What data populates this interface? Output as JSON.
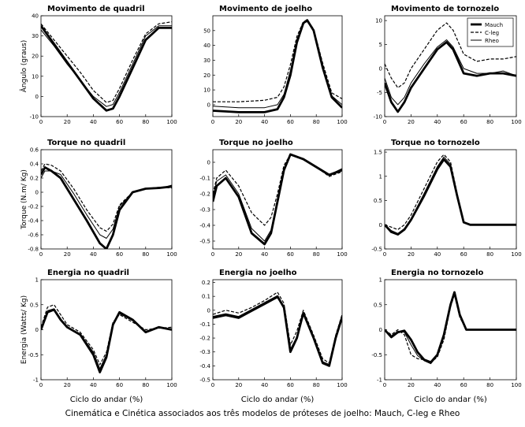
{
  "figure": {
    "caption": "Cinemática e Cinética associados aos três modelos de próteses de joelho: Mauch, C-leg e Rheo",
    "xlabel": "Ciclo do andar (%)",
    "row_ylabels": [
      "Ângulo (graus)",
      "Torque (N.m/ Kg)",
      "Energia (Watts/ Kg)"
    ]
  },
  "chart_data": [
    {
      "type": "line",
      "title": "Movimento de quadril",
      "xticks": [
        "0",
        "20",
        "40",
        "60",
        "80",
        "100"
      ],
      "xlim": [
        0,
        100
      ],
      "yticks": [
        "-10",
        "0",
        "10",
        "20",
        "30",
        "40"
      ],
      "ylim": [
        -10,
        40
      ],
      "series": [
        {
          "name": "Mauch",
          "x": [
            0,
            10,
            20,
            30,
            40,
            50,
            55,
            60,
            70,
            80,
            90,
            100
          ],
          "y": [
            35,
            26,
            17,
            8,
            -1,
            -7,
            -6,
            0,
            14,
            28,
            34,
            34
          ]
        },
        {
          "name": "C-leg",
          "x": [
            0,
            10,
            20,
            30,
            40,
            50,
            55,
            60,
            70,
            80,
            90,
            100
          ],
          "y": [
            36,
            28,
            20,
            12,
            3,
            -3,
            -2,
            4,
            18,
            31,
            36,
            37
          ]
        },
        {
          "name": "Rheo",
          "x": [
            0,
            10,
            20,
            30,
            40,
            50,
            55,
            60,
            70,
            80,
            90,
            100
          ],
          "y": [
            33,
            25,
            16,
            8,
            0,
            -5,
            -4,
            2,
            16,
            30,
            35,
            35
          ]
        }
      ]
    },
    {
      "type": "line",
      "title": "Movimento de joelho",
      "xticks": [
        "0",
        "20",
        "40",
        "60",
        "80",
        "100"
      ],
      "xlim": [
        0,
        100
      ],
      "yticks": [
        "0",
        "10",
        "20",
        "30",
        "40",
        "50"
      ],
      "ylim": [
        -8,
        60
      ],
      "series": [
        {
          "name": "Mauch",
          "x": [
            0,
            20,
            40,
            50,
            55,
            60,
            65,
            70,
            73,
            78,
            85,
            92,
            100
          ],
          "y": [
            -4,
            -5,
            -5,
            -3,
            5,
            20,
            42,
            55,
            57,
            50,
            25,
            5,
            -2
          ]
        },
        {
          "name": "C-leg",
          "x": [
            0,
            20,
            40,
            50,
            55,
            60,
            65,
            70,
            73,
            78,
            85,
            92,
            100
          ],
          "y": [
            2,
            2,
            3,
            5,
            12,
            27,
            46,
            56,
            57,
            51,
            28,
            8,
            4
          ]
        },
        {
          "name": "Rheo",
          "x": [
            0,
            20,
            40,
            50,
            55,
            60,
            65,
            70,
            73,
            78,
            85,
            92,
            100
          ],
          "y": [
            -1,
            -2,
            -2,
            0,
            7,
            23,
            44,
            55,
            56,
            50,
            26,
            6,
            0
          ]
        }
      ]
    },
    {
      "type": "line",
      "title": "Movimento de tornozelo",
      "xticks": [
        "0",
        "20",
        "40",
        "60",
        "80",
        "100"
      ],
      "xlim": [
        0,
        100
      ],
      "yticks": [
        "-10",
        "-5",
        "0",
        "5",
        "10"
      ],
      "ylim": [
        -10,
        11
      ],
      "legend": [
        "Mauch",
        "C-leg",
        "Rheo"
      ],
      "series": [
        {
          "name": "Mauch",
          "x": [
            0,
            5,
            10,
            15,
            20,
            30,
            40,
            47,
            52,
            60,
            70,
            80,
            90,
            100
          ],
          "y": [
            -3,
            -7,
            -9,
            -7,
            -4,
            0,
            4,
            5.5,
            4,
            -1,
            -1.5,
            -1,
            -1,
            -1.5
          ]
        },
        {
          "name": "C-leg",
          "x": [
            0,
            5,
            10,
            15,
            20,
            30,
            40,
            47,
            52,
            60,
            70,
            80,
            90,
            100
          ],
          "y": [
            1,
            -2,
            -4,
            -3,
            0,
            4,
            8,
            9.5,
            8,
            3,
            1.5,
            2,
            2,
            2.5
          ]
        },
        {
          "name": "Rheo",
          "x": [
            0,
            5,
            10,
            15,
            20,
            30,
            40,
            47,
            52,
            60,
            70,
            80,
            90,
            100
          ],
          "y": [
            -2,
            -6,
            -7.5,
            -6,
            -3,
            1,
            4.5,
            6,
            4.5,
            0,
            -1,
            -1,
            -0.5,
            -1.5
          ]
        }
      ]
    },
    {
      "type": "line",
      "title": "Torque no quadril",
      "xticks": [
        "0",
        "20",
        "40",
        "60",
        "80",
        "100"
      ],
      "xlim": [
        0,
        100
      ],
      "yticks": [
        "-0.8",
        "-0.6",
        "-0.4",
        "-0.2",
        "0",
        "0.2",
        "0.4",
        "0.6"
      ],
      "ylim": [
        -0.8,
        0.6
      ],
      "series": [
        {
          "name": "Mauch",
          "x": [
            0,
            3,
            8,
            15,
            25,
            35,
            45,
            50,
            55,
            60,
            70,
            80,
            90,
            100
          ],
          "y": [
            0.25,
            0.35,
            0.3,
            0.2,
            -0.1,
            -0.4,
            -0.72,
            -0.8,
            -0.6,
            -0.25,
            0,
            0.05,
            0.06,
            0.08
          ]
        },
        {
          "name": "C-leg",
          "x": [
            0,
            3,
            8,
            15,
            25,
            35,
            45,
            50,
            55,
            60,
            70,
            80,
            90,
            100
          ],
          "y": [
            0.3,
            0.4,
            0.38,
            0.3,
            0.05,
            -0.25,
            -0.5,
            -0.55,
            -0.45,
            -0.18,
            0,
            0.05,
            0.07,
            0.06
          ]
        },
        {
          "name": "Rheo",
          "x": [
            0,
            3,
            8,
            15,
            25,
            35,
            45,
            50,
            55,
            60,
            70,
            80,
            90,
            100
          ],
          "y": [
            0.2,
            0.3,
            0.3,
            0.25,
            -0.02,
            -0.32,
            -0.6,
            -0.65,
            -0.52,
            -0.2,
            0,
            0.05,
            0.05,
            0.1
          ]
        }
      ]
    },
    {
      "type": "line",
      "title": "Torque no joelho",
      "xticks": [
        "0",
        "20",
        "40",
        "60",
        "80",
        "100"
      ],
      "xlim": [
        0,
        100
      ],
      "yticks": [
        "-0.5",
        "-0.4",
        "-0.3",
        "-0.2",
        "-0.1",
        "0"
      ],
      "ylim": [
        -0.55,
        0.08
      ],
      "series": [
        {
          "name": "Mauch",
          "x": [
            0,
            3,
            10,
            20,
            30,
            40,
            45,
            50,
            55,
            60,
            70,
            80,
            90,
            100
          ],
          "y": [
            -0.25,
            -0.15,
            -0.1,
            -0.22,
            -0.45,
            -0.52,
            -0.45,
            -0.25,
            -0.05,
            0.05,
            0.02,
            -0.03,
            -0.08,
            -0.05
          ]
        },
        {
          "name": "C-leg",
          "x": [
            0,
            3,
            10,
            20,
            30,
            40,
            45,
            50,
            55,
            60,
            70,
            80,
            90,
            100
          ],
          "y": [
            -0.2,
            -0.1,
            -0.05,
            -0.15,
            -0.32,
            -0.4,
            -0.35,
            -0.2,
            -0.02,
            0.05,
            0.02,
            -0.03,
            -0.09,
            -0.06
          ]
        },
        {
          "name": "Rheo",
          "x": [
            0,
            3,
            10,
            20,
            30,
            40,
            45,
            50,
            55,
            60,
            70,
            80,
            90,
            100
          ],
          "y": [
            -0.22,
            -0.12,
            -0.08,
            -0.2,
            -0.42,
            -0.5,
            -0.43,
            -0.23,
            -0.04,
            0.05,
            0.02,
            -0.03,
            -0.08,
            -0.04
          ]
        }
      ]
    },
    {
      "type": "line",
      "title": "Torque no tornozelo",
      "xticks": [
        "0",
        "20",
        "40",
        "60",
        "80",
        "100"
      ],
      "xlim": [
        0,
        100
      ],
      "yticks": [
        "-0.5",
        "0",
        "0.5",
        "1",
        "1.5"
      ],
      "ylim": [
        -0.5,
        1.55
      ],
      "series": [
        {
          "name": "Mauch",
          "x": [
            0,
            5,
            10,
            15,
            20,
            30,
            40,
            45,
            50,
            55,
            60,
            65,
            100
          ],
          "y": [
            0,
            -0.15,
            -0.2,
            -0.1,
            0.1,
            0.6,
            1.15,
            1.35,
            1.2,
            0.6,
            0.05,
            0,
            0
          ]
        },
        {
          "name": "C-leg",
          "x": [
            0,
            5,
            10,
            15,
            20,
            30,
            40,
            45,
            50,
            55,
            60,
            65,
            100
          ],
          "y": [
            0,
            -0.05,
            -0.1,
            0,
            0.2,
            0.75,
            1.3,
            1.45,
            1.3,
            0.65,
            0.05,
            0,
            0
          ]
        },
        {
          "name": "Rheo",
          "x": [
            0,
            5,
            10,
            15,
            20,
            30,
            40,
            45,
            50,
            55,
            60,
            65,
            100
          ],
          "y": [
            0,
            -0.12,
            -0.18,
            -0.08,
            0.12,
            0.65,
            1.2,
            1.4,
            1.25,
            0.62,
            0.05,
            0,
            0
          ]
        }
      ]
    },
    {
      "type": "line",
      "title": "Energia no quadril",
      "xticks": [
        "0",
        "20",
        "40",
        "60",
        "80",
        "100"
      ],
      "xlim": [
        0,
        100
      ],
      "yticks": [
        "-1",
        "-0.5",
        "0",
        "0.5",
        "1"
      ],
      "ylim": [
        -1,
        1
      ],
      "series": [
        {
          "name": "Mauch",
          "x": [
            0,
            5,
            10,
            15,
            20,
            30,
            40,
            45,
            50,
            55,
            60,
            70,
            80,
            90,
            100
          ],
          "y": [
            0,
            0.35,
            0.4,
            0.2,
            0.05,
            -0.1,
            -0.5,
            -0.85,
            -0.55,
            0.1,
            0.35,
            0.2,
            -0.05,
            0.05,
            0
          ]
        },
        {
          "name": "C-leg",
          "x": [
            0,
            5,
            10,
            15,
            20,
            30,
            40,
            45,
            50,
            55,
            60,
            70,
            80,
            90,
            100
          ],
          "y": [
            0.05,
            0.45,
            0.5,
            0.3,
            0.1,
            -0.05,
            -0.4,
            -0.7,
            -0.45,
            0.15,
            0.3,
            0.15,
            0,
            0.03,
            0.05
          ]
        },
        {
          "name": "Rheo",
          "x": [
            0,
            5,
            10,
            15,
            20,
            30,
            40,
            45,
            50,
            55,
            60,
            70,
            80,
            90,
            100
          ],
          "y": [
            0,
            0.38,
            0.42,
            0.22,
            0.05,
            -0.08,
            -0.45,
            -0.78,
            -0.5,
            0.12,
            0.32,
            0.18,
            -0.03,
            0.04,
            0.02
          ]
        }
      ]
    },
    {
      "type": "line",
      "title": "Energia no joelho",
      "xticks": [
        "0",
        "20",
        "40",
        "60",
        "80",
        "100"
      ],
      "xlim": [
        0,
        100
      ],
      "yticks": [
        "-0.5",
        "-0.4",
        "-0.3",
        "-0.2",
        "-0.1",
        "0",
        "0.1",
        "0.2"
      ],
      "ylim": [
        -0.5,
        0.22
      ],
      "series": [
        {
          "name": "Mauch",
          "x": [
            0,
            10,
            20,
            30,
            40,
            50,
            55,
            60,
            65,
            70,
            78,
            85,
            90,
            95,
            100
          ],
          "y": [
            -0.05,
            -0.03,
            -0.05,
            0,
            0.05,
            0.1,
            0.02,
            -0.3,
            -0.2,
            -0.02,
            -0.2,
            -0.38,
            -0.4,
            -0.2,
            -0.05
          ]
        },
        {
          "name": "C-leg",
          "x": [
            0,
            10,
            20,
            30,
            40,
            50,
            55,
            60,
            65,
            70,
            78,
            85,
            90,
            95,
            100
          ],
          "y": [
            -0.03,
            0,
            -0.02,
            0.02,
            0.07,
            0.13,
            0.05,
            -0.25,
            -0.15,
            0,
            -0.18,
            -0.35,
            -0.38,
            -0.18,
            -0.03
          ]
        },
        {
          "name": "Rheo",
          "x": [
            0,
            10,
            20,
            30,
            40,
            50,
            55,
            60,
            65,
            70,
            78,
            85,
            90,
            95,
            100
          ],
          "y": [
            -0.06,
            -0.04,
            -0.06,
            -0.01,
            0.04,
            0.09,
            0.01,
            -0.28,
            -0.19,
            -0.03,
            -0.21,
            -0.37,
            -0.39,
            -0.21,
            -0.06
          ]
        }
      ]
    },
    {
      "type": "line",
      "title": "Energia no tornozelo",
      "xticks": [
        "0",
        "20",
        "40",
        "60",
        "80",
        "100"
      ],
      "xlim": [
        0,
        100
      ],
      "yticks": [
        "-1",
        "-0.5",
        "0",
        "0.5",
        "1"
      ],
      "ylim": [
        -1,
        1
      ],
      "series": [
        {
          "name": "Mauch",
          "x": [
            0,
            5,
            10,
            15,
            20,
            25,
            30,
            35,
            40,
            45,
            50,
            53,
            57,
            62,
            100
          ],
          "y": [
            0,
            -0.15,
            -0.05,
            -0.02,
            -0.2,
            -0.45,
            -0.6,
            -0.65,
            -0.5,
            -0.1,
            0.5,
            0.75,
            0.3,
            0,
            0
          ]
        },
        {
          "name": "C-leg",
          "x": [
            0,
            5,
            10,
            15,
            20,
            25,
            30,
            35,
            40,
            45,
            50,
            53,
            57,
            62,
            100
          ],
          "y": [
            0,
            -0.1,
            0,
            -0.1,
            -0.5,
            -0.58,
            -0.6,
            -0.65,
            -0.55,
            -0.2,
            0.45,
            0.7,
            0.25,
            0,
            0
          ]
        },
        {
          "name": "Rheo",
          "x": [
            0,
            5,
            10,
            15,
            20,
            25,
            30,
            35,
            40,
            45,
            50,
            53,
            57,
            62,
            100
          ],
          "y": [
            0,
            -0.12,
            -0.03,
            -0.05,
            -0.3,
            -0.52,
            -0.62,
            -0.68,
            -0.52,
            -0.15,
            0.48,
            0.72,
            0.28,
            0,
            0
          ]
        }
      ]
    }
  ],
  "style": {
    "line_color": "#000000",
    "series_styles": {
      "Mauch": {
        "width": 2.8,
        "dash": ""
      },
      "C-leg": {
        "width": 1.2,
        "dash": "4,2"
      },
      "Rheo": {
        "width": 1.0,
        "dash": ""
      }
    }
  }
}
